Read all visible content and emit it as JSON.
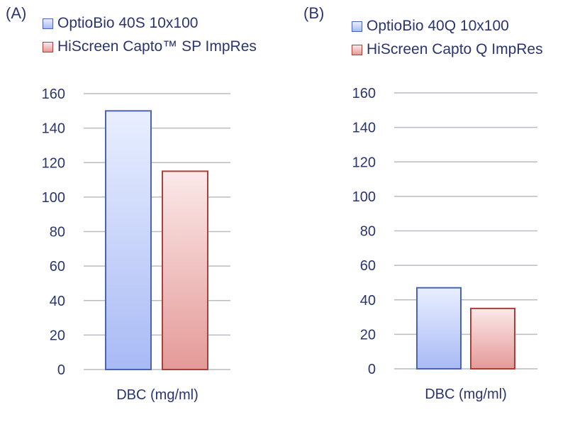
{
  "chart_data": [
    {
      "type": "bar",
      "panel_label": "(A)",
      "categories": [
        "DBC (mg/ml)"
      ],
      "series": [
        {
          "name": "OptioBio 40S 10x100",
          "values": [
            150
          ]
        },
        {
          "name": "HiScreen Capto™ SP ImpRes",
          "values": [
            115
          ]
        }
      ],
      "ylim": [
        0,
        160
      ],
      "yticks": [
        0,
        20,
        40,
        60,
        80,
        100,
        120,
        140,
        160
      ],
      "xlabel": "DBC (mg/ml)",
      "grid": true,
      "legend_position": "top-left"
    },
    {
      "type": "bar",
      "panel_label": "(B)",
      "categories": [
        "DBC (mg/ml)"
      ],
      "series": [
        {
          "name": "OptioBio 40Q 10x100",
          "values": [
            47
          ]
        },
        {
          "name": "HiScreen Capto Q ImpRes",
          "values": [
            35
          ]
        }
      ],
      "ylim": [
        0,
        160
      ],
      "yticks": [
        0,
        20,
        40,
        60,
        80,
        100,
        120,
        140,
        160
      ],
      "xlabel": "DBC (mg/ml)",
      "grid": true,
      "legend_position": "top-left"
    }
  ],
  "colors": {
    "series_fill_top": [
      "#e9efff",
      "#fbe9e9"
    ],
    "series_fill_bottom": [
      "#a9baf5",
      "#e49a98"
    ],
    "series_stroke": [
      "#4a63b2",
      "#a8403c"
    ],
    "gridline": "#b8bcc6",
    "text": "#2a3570"
  }
}
